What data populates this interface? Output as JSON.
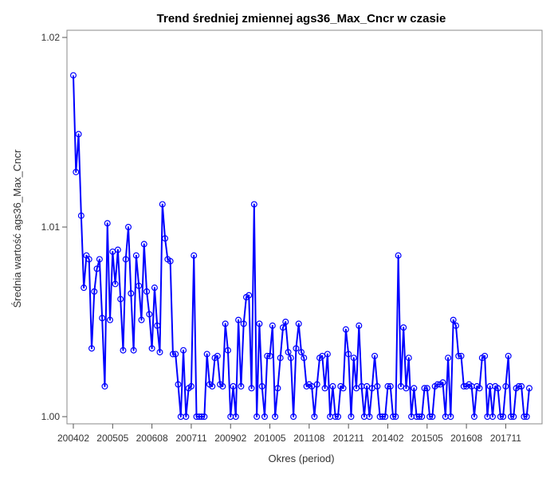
{
  "chart_data": {
    "type": "line",
    "title": "Trend średniej zmiennej ags36_Max_Cncr w czasie",
    "xlabel": "Okres (period)",
    "ylabel": "Średnia wartość ags36_Max_Cncr",
    "x_tick_labels": [
      "200402",
      "200505",
      "200608",
      "200711",
      "200902",
      "201005",
      "201108",
      "201211",
      "201402",
      "201505",
      "201608",
      "201711"
    ],
    "y_tick_labels": [
      "1.00",
      "1.01",
      "1.02"
    ],
    "ylim": [
      1.0,
      1.02
    ],
    "series_color": "#0000ff",
    "grid": false,
    "values": [
      1.018,
      1.0129,
      1.0149,
      1.0106,
      1.0068,
      1.0085,
      1.0083,
      1.0036,
      1.0066,
      1.0078,
      1.0083,
      1.0052,
      1.0016,
      1.0102,
      1.0051,
      1.0087,
      1.007,
      1.0088,
      1.0062,
      1.0035,
      1.0083,
      1.01,
      1.0065,
      1.0035,
      1.0085,
      1.0069,
      1.0051,
      1.0091,
      1.0066,
      1.0054,
      1.0036,
      1.0068,
      1.0048,
      1.0034,
      1.0112,
      1.0094,
      1.0083,
      1.0082,
      1.0033,
      1.0033,
      1.0017,
      1.0,
      1.0035,
      1.0,
      1.0015,
      1.0016,
      1.0085,
      1.0,
      1.0,
      1.0,
      1.0,
      1.0033,
      1.0017,
      1.0016,
      1.0031,
      1.0032,
      1.0017,
      1.0016,
      1.0049,
      1.0035,
      1.0,
      1.0016,
      1.0,
      1.0051,
      1.0016,
      1.0049,
      1.0063,
      1.0064,
      1.0015,
      1.0112,
      1.0,
      1.0049,
      1.0016,
      1.0,
      1.0032,
      1.0032,
      1.0048,
      1.0,
      1.0015,
      1.0031,
      1.0047,
      1.005,
      1.0034,
      1.0031,
      1.0,
      1.0036,
      1.0049,
      1.0034,
      1.0031,
      1.0016,
      1.0017,
      1.0016,
      1.0,
      1.0017,
      1.0031,
      1.0032,
      1.0015,
      1.0033,
      1.0,
      1.0016,
      1.0,
      1.0,
      1.0016,
      1.0015,
      1.0046,
      1.0033,
      1.0,
      1.0031,
      1.0015,
      1.0048,
      1.0016,
      1.0,
      1.0016,
      1.0,
      1.0015,
      1.0032,
      1.0016,
      1.0,
      1.0,
      1.0,
      1.0016,
      1.0016,
      1.0,
      1.0,
      1.0085,
      1.0016,
      1.0047,
      1.0015,
      1.0031,
      1.0,
      1.0015,
      1.0,
      1.0,
      1.0,
      1.0015,
      1.0015,
      1.0,
      1.0,
      1.0016,
      1.0017,
      1.0017,
      1.0018,
      1.0,
      1.0031,
      1.0,
      1.0051,
      1.0048,
      1.0032,
      1.0032,
      1.0016,
      1.0016,
      1.0017,
      1.0016,
      1.0,
      1.0016,
      1.0015,
      1.0031,
      1.0032,
      1.0,
      1.0016,
      1.0,
      1.0016,
      1.0015,
      1.0,
      1.0,
      1.0016,
      1.0032,
      1.0,
      1.0,
      1.0015,
      1.0016,
      1.0016,
      1.0,
      1.0,
      1.0015
    ]
  }
}
